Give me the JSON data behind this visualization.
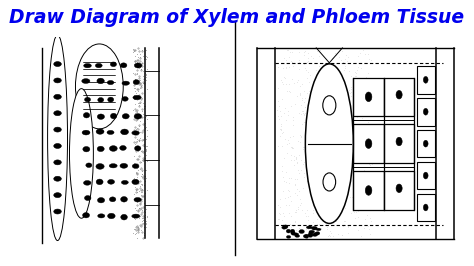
{
  "title": "Draw Diagram of Xylem and Phloem Tissue",
  "title_color": "#0000EE",
  "title_fontsize": 13.5,
  "bg_color": "#FFFFFF",
  "fig_width": 4.74,
  "fig_height": 2.66,
  "dpi": 100
}
